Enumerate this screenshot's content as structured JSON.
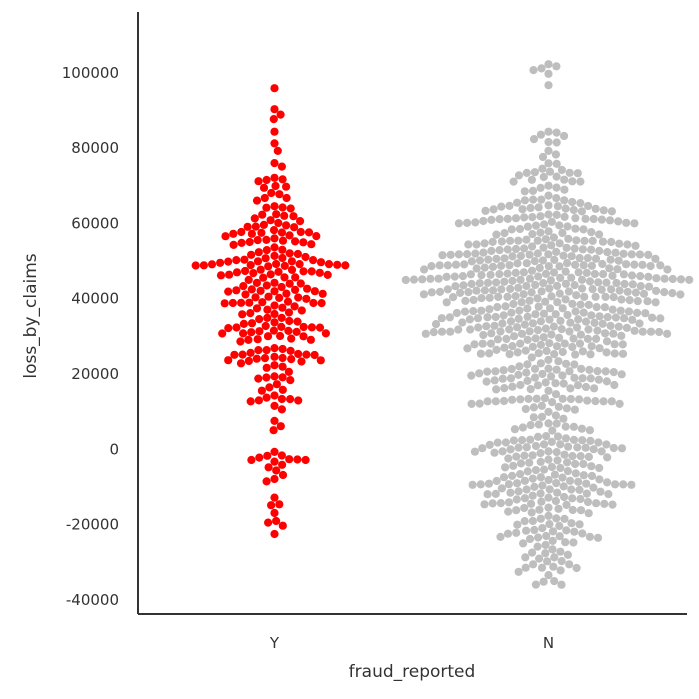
{
  "chart_data": {
    "type": "swarm",
    "title": "",
    "xlabel": "fraud_reported",
    "ylabel": "loss_by_claims",
    "categories": [
      "Y",
      "N"
    ],
    "ylim": [
      -45000,
      115000
    ],
    "yticks": [
      -40000,
      -20000,
      0,
      20000,
      40000,
      60000,
      80000,
      100000
    ],
    "grid": false,
    "colors": {
      "Y": "#ff0000",
      "N": "#bebebe"
    },
    "series": [
      {
        "category": "Y",
        "count": 247,
        "values_approx": [
          -22000,
          -21500,
          -18000,
          -17000,
          -13000,
          -9000,
          -7000,
          -6000,
          -5000,
          -4500,
          -4000,
          -3000,
          -2500,
          -2000,
          -1500,
          3000,
          6000,
          11000,
          12000,
          13000,
          14000,
          15000,
          16000,
          17000,
          19000,
          20000,
          22000,
          23000,
          24000,
          25000,
          26000,
          27000,
          28000,
          29000,
          30000,
          31000,
          32000,
          33000,
          34000,
          35000,
          36000,
          37000,
          38000,
          39000,
          40000,
          41000,
          42000,
          43000,
          44000,
          45000,
          46000,
          47000,
          48000,
          49000,
          50000,
          51000,
          52000,
          53000,
          54000,
          55000,
          56000,
          57000,
          58000,
          59000,
          60000,
          61000,
          62000,
          63000,
          64000,
          66000,
          68000,
          69000,
          70000,
          72000,
          73000,
          74000,
          75000,
          78000,
          80000,
          82000,
          84000,
          85000,
          88000,
          92000,
          93000,
          95000
        ]
      },
      {
        "category": "N",
        "count": 753,
        "values_approx": [
          -35000,
          -34000,
          -32000,
          -30000,
          -28000,
          -26000,
          -24000,
          -22000,
          -20000,
          -18000,
          -16000,
          -14000,
          -12000,
          -10000,
          -8000,
          -6000,
          -4000,
          -2000,
          0,
          2000,
          4000,
          6000,
          8000,
          10000,
          12000,
          14000,
          16000,
          18000,
          20000,
          22000,
          24000,
          26000,
          28000,
          30000,
          32000,
          34000,
          36000,
          38000,
          40000,
          42000,
          44000,
          46000,
          48000,
          50000,
          52000,
          54000,
          56000,
          58000,
          60000,
          62000,
          64000,
          66000,
          68000,
          70000,
          72000,
          74000,
          76000,
          78000,
          80000,
          82000,
          84000,
          86000,
          90000,
          93000,
          95000,
          97000,
          98000,
          107000
        ]
      }
    ]
  }
}
